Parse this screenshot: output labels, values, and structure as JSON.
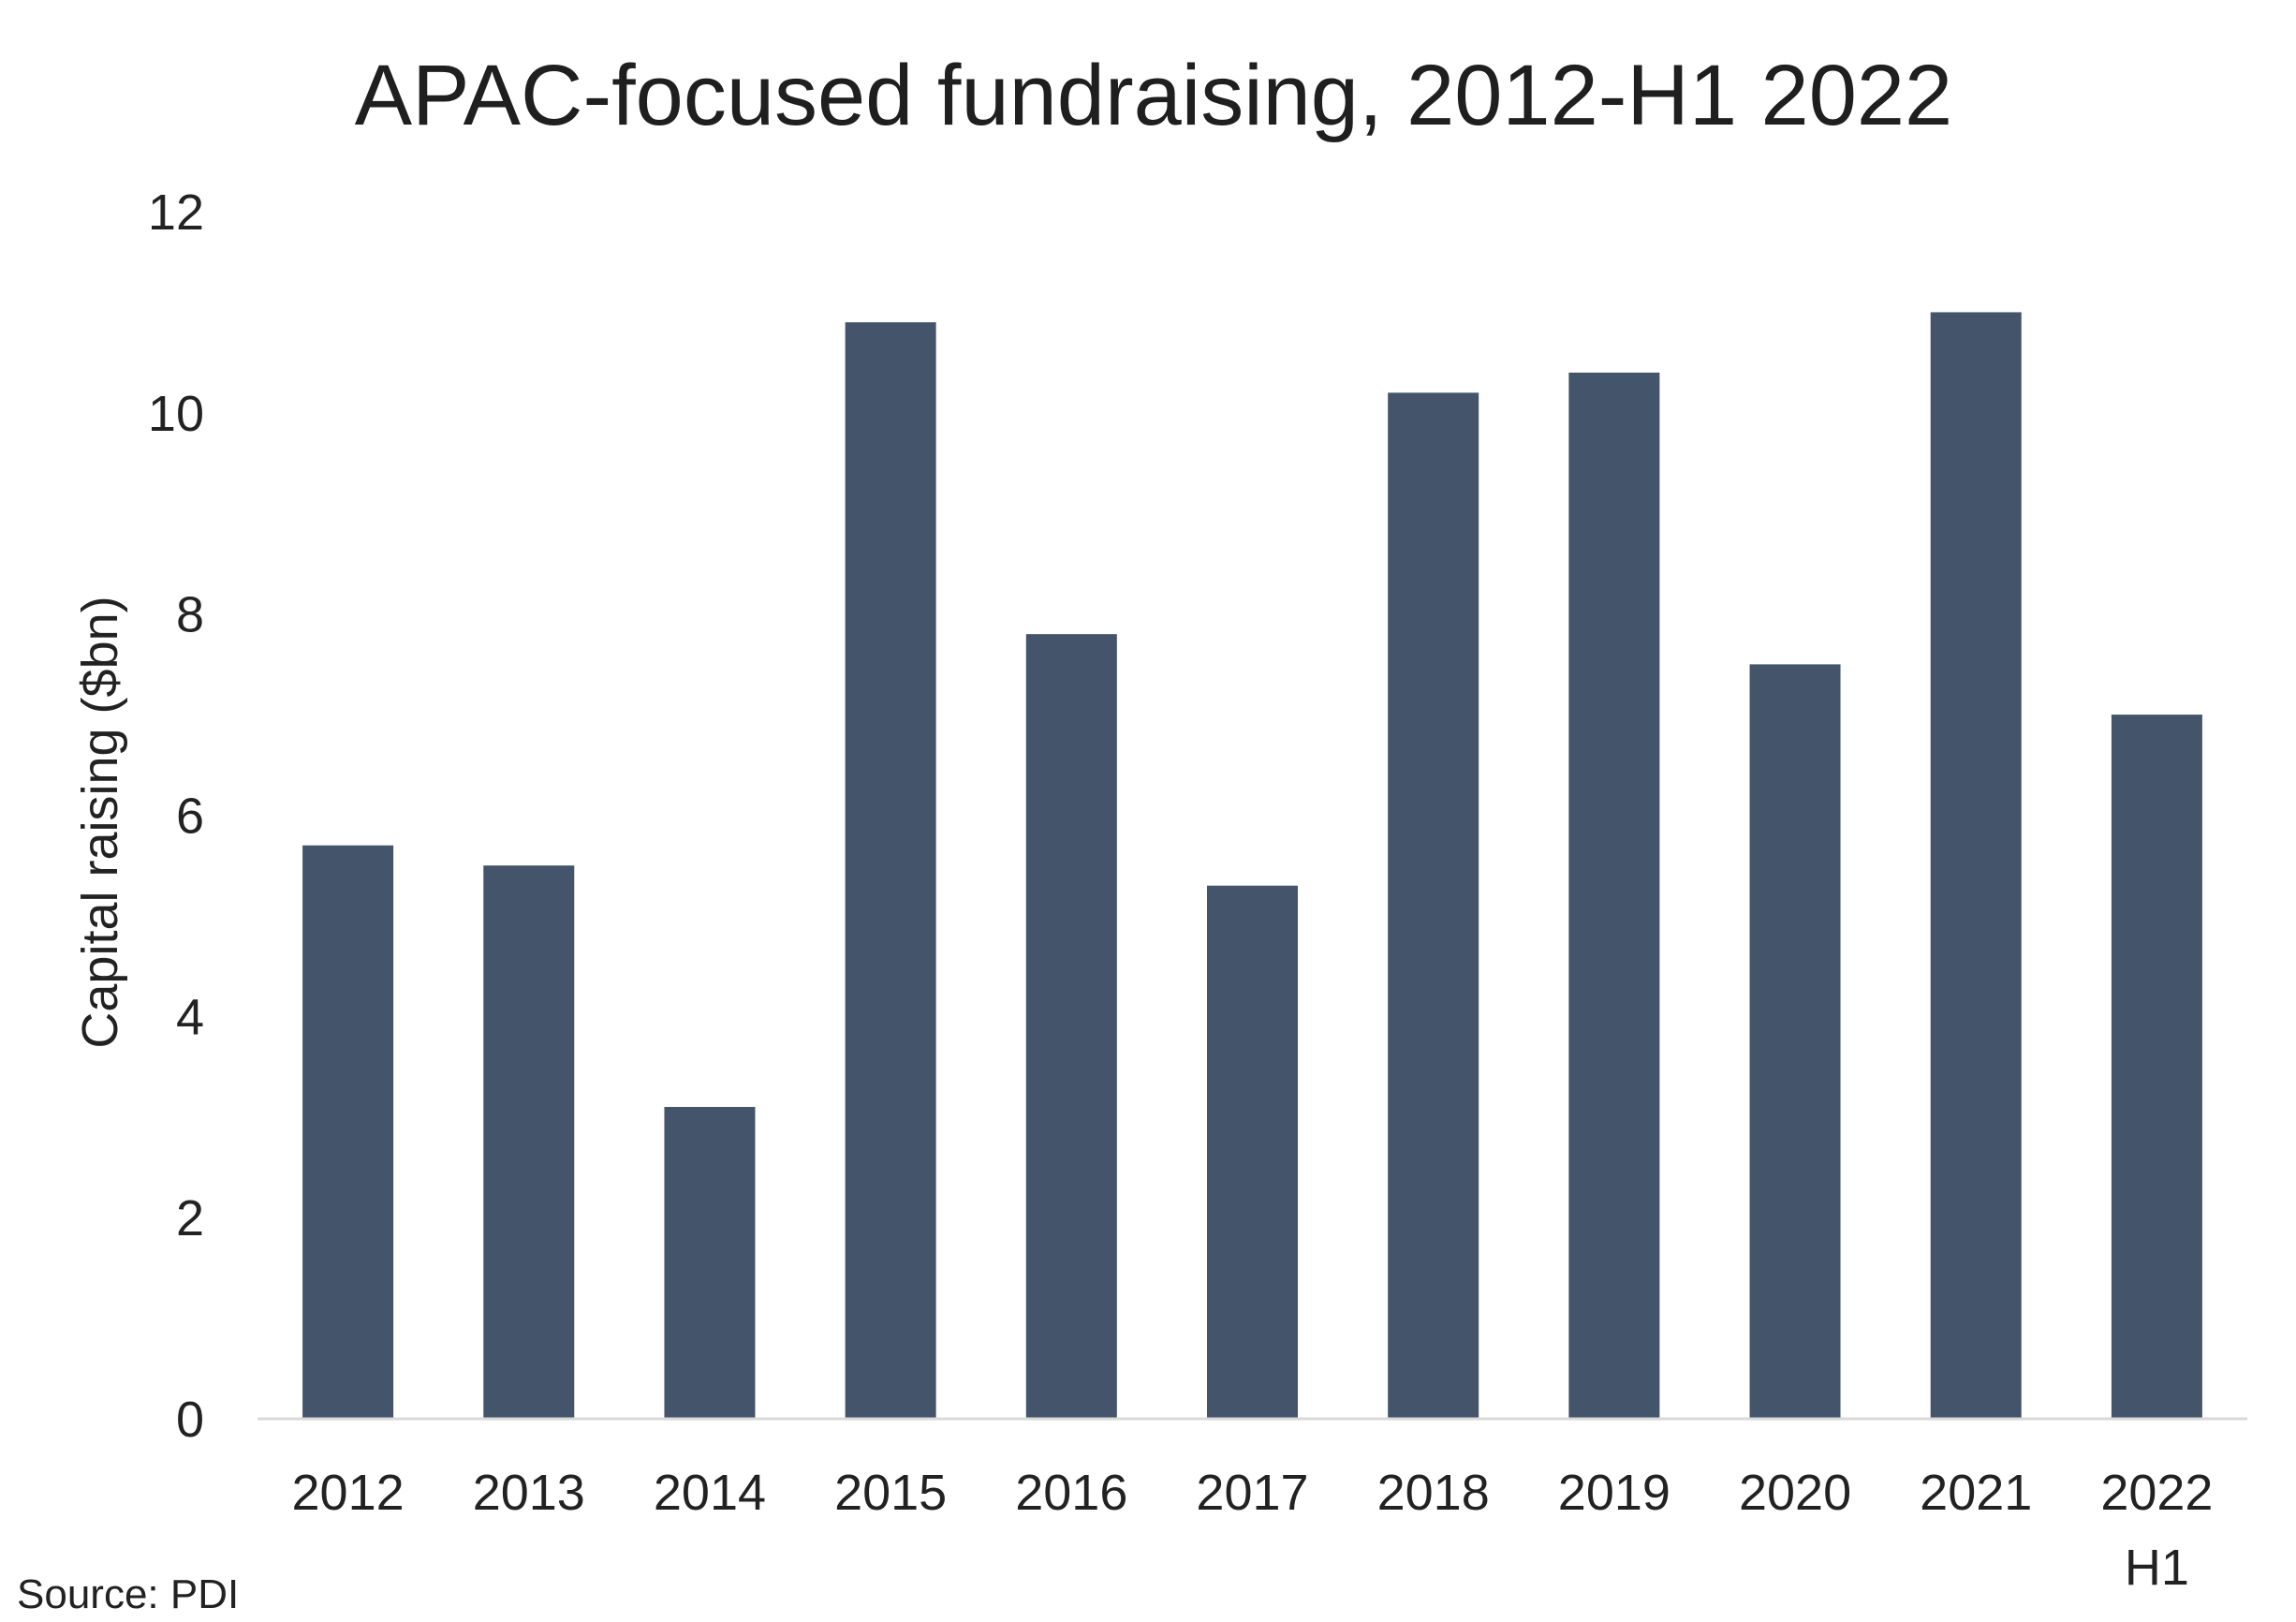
{
  "chart_data": {
    "type": "bar",
    "title": "APAC-focused fundraising, 2012-H1 2022",
    "xlabel": "",
    "ylabel": "Capital raising ($bn)",
    "categories": [
      [
        "2012"
      ],
      [
        "2013"
      ],
      [
        "2014"
      ],
      [
        "2015"
      ],
      [
        "2016"
      ],
      [
        "2017"
      ],
      [
        "2018"
      ],
      [
        "2019"
      ],
      [
        "2020"
      ],
      [
        "2021"
      ],
      [
        "2022",
        "H1"
      ]
    ],
    "values": [
      5.7,
      5.5,
      3.1,
      10.9,
      7.8,
      5.3,
      10.2,
      10.4,
      7.5,
      11.0,
      7.0
    ],
    "ylim": [
      0,
      12
    ],
    "yticks": [
      "0",
      "2",
      "4",
      "6",
      "8",
      "10",
      "12"
    ],
    "grid": false,
    "legend": "none",
    "bar_color": "#44546a",
    "baseline_color": "#d9d9d9",
    "source": "Source: PDI"
  }
}
